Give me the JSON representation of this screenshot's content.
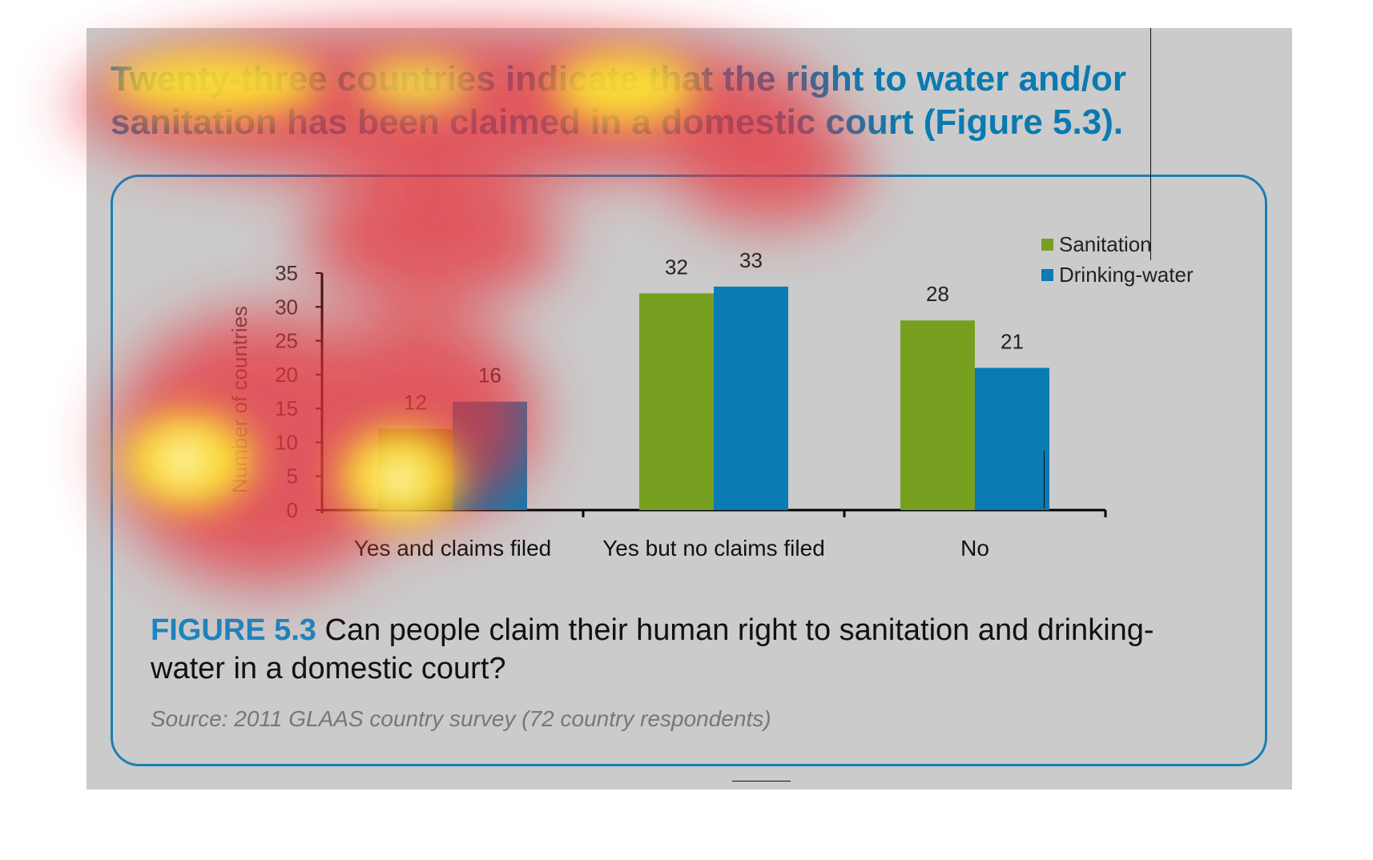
{
  "headline": "Twenty-three countries indicate that the right to water and/or sanitation has been claimed in a domestic court (Figure 5.3).",
  "caption": {
    "figure_label": "FIGURE 5.3",
    "text": "Can people claim their human right to sanitation and drinking-water in a domestic court?"
  },
  "source": "Source: 2011 GLAAS country survey (72 country respondents)",
  "colors": {
    "sanitation": "#78a020",
    "drinking_water": "#0a7cb3",
    "accent": "#1a86c0"
  },
  "chart_data": {
    "type": "bar",
    "categories": [
      "Yes and claims filed",
      "Yes but no claims filed",
      "No"
    ],
    "series": [
      {
        "name": "Sanitation",
        "values": [
          12,
          32,
          28
        ]
      },
      {
        "name": "Drinking-water",
        "values": [
          16,
          33,
          21
        ]
      }
    ],
    "ylabel": "Number of countries",
    "ylim": [
      0,
      35
    ],
    "yticks": [
      0,
      5,
      10,
      15,
      20,
      25,
      30,
      35
    ],
    "grid": false,
    "legend": "top-right",
    "data_labels": true
  }
}
